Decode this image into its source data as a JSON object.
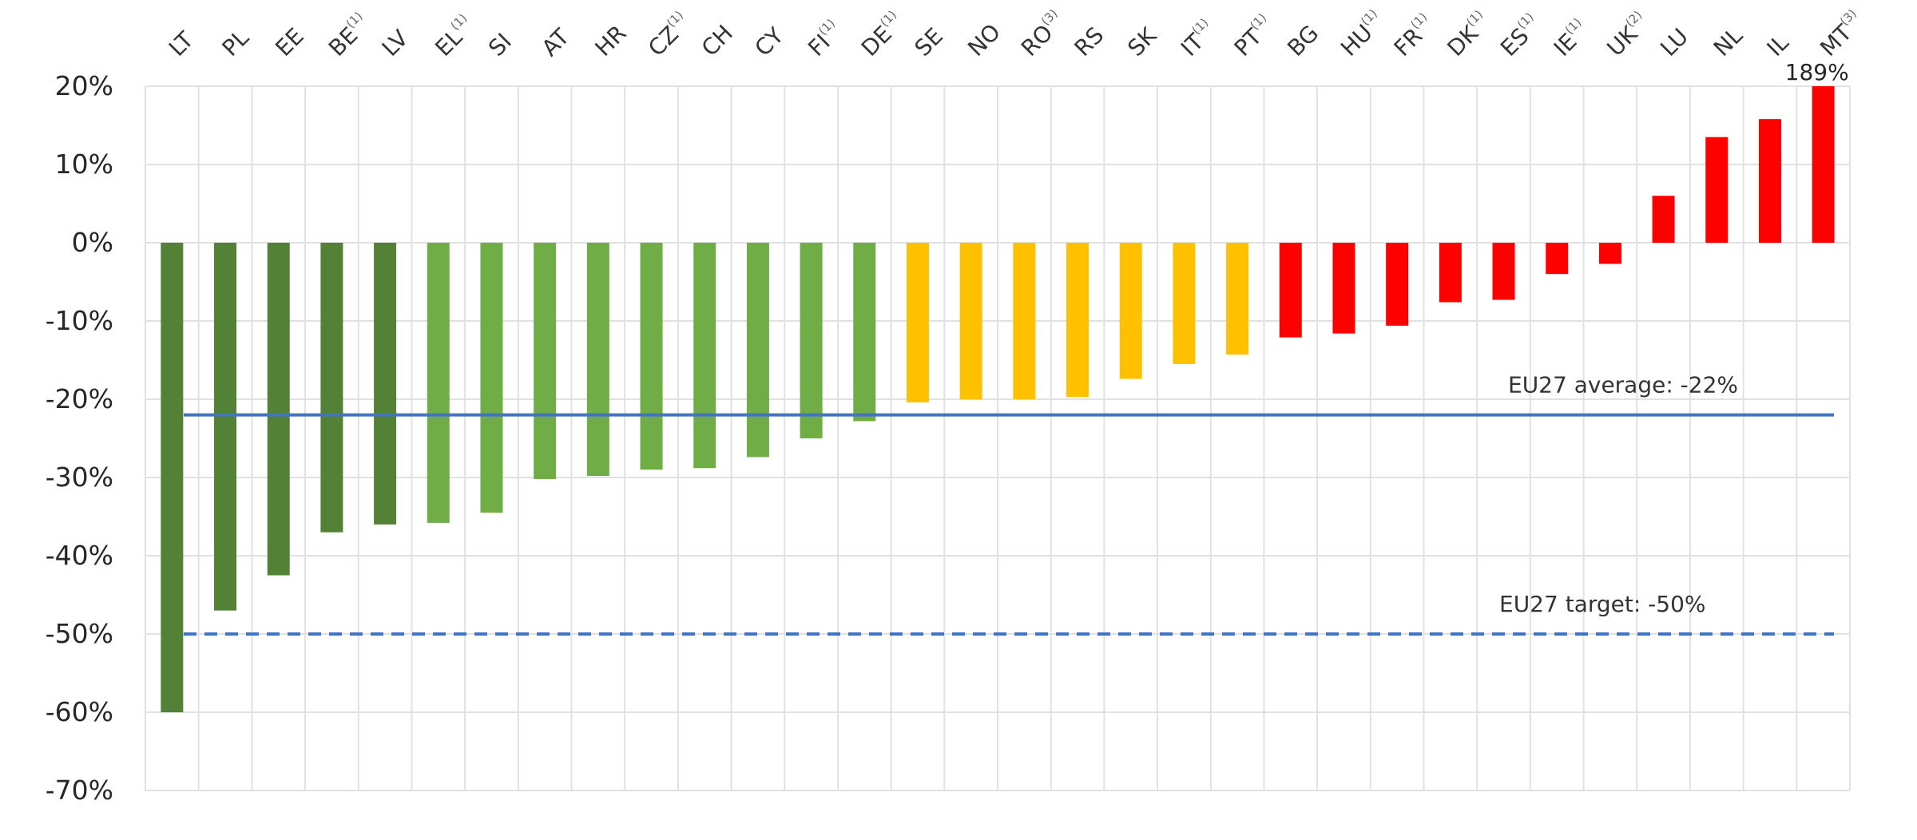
{
  "chart_data": {
    "type": "bar",
    "title": "",
    "xlabel": "",
    "ylabel": "",
    "ylim": [
      -70,
      20
    ],
    "yticks": [
      "20%",
      "10%",
      "0%",
      "-10%",
      "-20%",
      "-30%",
      "-40%",
      "-50%",
      "-60%",
      "-70%"
    ],
    "grid": true,
    "legend": null,
    "categories": [
      "LT",
      "PL",
      "EE",
      "BE",
      "LV",
      "EL",
      "SI",
      "AT",
      "HR",
      "CZ",
      "CH",
      "CY",
      "FI",
      "DE",
      "SE",
      "NO",
      "RO",
      "RS",
      "SK",
      "IT",
      "PT",
      "BG",
      "HU",
      "FR",
      "DK",
      "ES",
      "IE",
      "UK",
      "LU",
      "NL",
      "IL",
      "MT"
    ],
    "category_superscripts": [
      "",
      "",
      "",
      "(1)",
      "",
      "(1)",
      "",
      "",
      "",
      "(1)",
      "",
      "",
      "(1)",
      "(1)",
      "",
      "",
      "(3)",
      "",
      "",
      "(1)",
      "(1)",
      "",
      "(1)",
      "(1)",
      "(1)",
      "(1)",
      "(1)",
      "(2)",
      "",
      "",
      "",
      "(3)"
    ],
    "values": [
      -60,
      -47,
      -42.5,
      -37,
      -36,
      -35.8,
      -34.5,
      -30.2,
      -29.8,
      -29,
      -28.8,
      -27.4,
      -25,
      -22.8,
      -20.4,
      -20,
      -20,
      -19.7,
      -17.4,
      -15.5,
      -14.3,
      -12.1,
      -11.6,
      -10.6,
      -7.6,
      -7.3,
      -4,
      -2.7,
      6,
      13.5,
      15.8,
      189
    ],
    "bar_colors": [
      "#538135",
      "#538135",
      "#538135",
      "#538135",
      "#538135",
      "#70ad47",
      "#70ad47",
      "#70ad47",
      "#70ad47",
      "#70ad47",
      "#70ad47",
      "#70ad47",
      "#70ad47",
      "#70ad47",
      "#ffc000",
      "#ffc000",
      "#ffc000",
      "#ffc000",
      "#ffc000",
      "#ffc000",
      "#ffc000",
      "#ff0000",
      "#ff0000",
      "#ff0000",
      "#ff0000",
      "#ff0000",
      "#ff0000",
      "#ff0000",
      "#ff0000",
      "#ff0000",
      "#ff0000",
      "#ff0000"
    ],
    "data_labels": [
      {
        "category": "MT",
        "text": "189%"
      }
    ],
    "reference_lines": [
      {
        "name": "EU27 average",
        "value": -22,
        "label": "EU27 average: -22%",
        "style": "solid",
        "color": "#4472c4"
      },
      {
        "name": "EU27 target",
        "value": -50,
        "label": "EU27 target: -50%",
        "style": "dashed",
        "color": "#4472c4"
      }
    ]
  }
}
